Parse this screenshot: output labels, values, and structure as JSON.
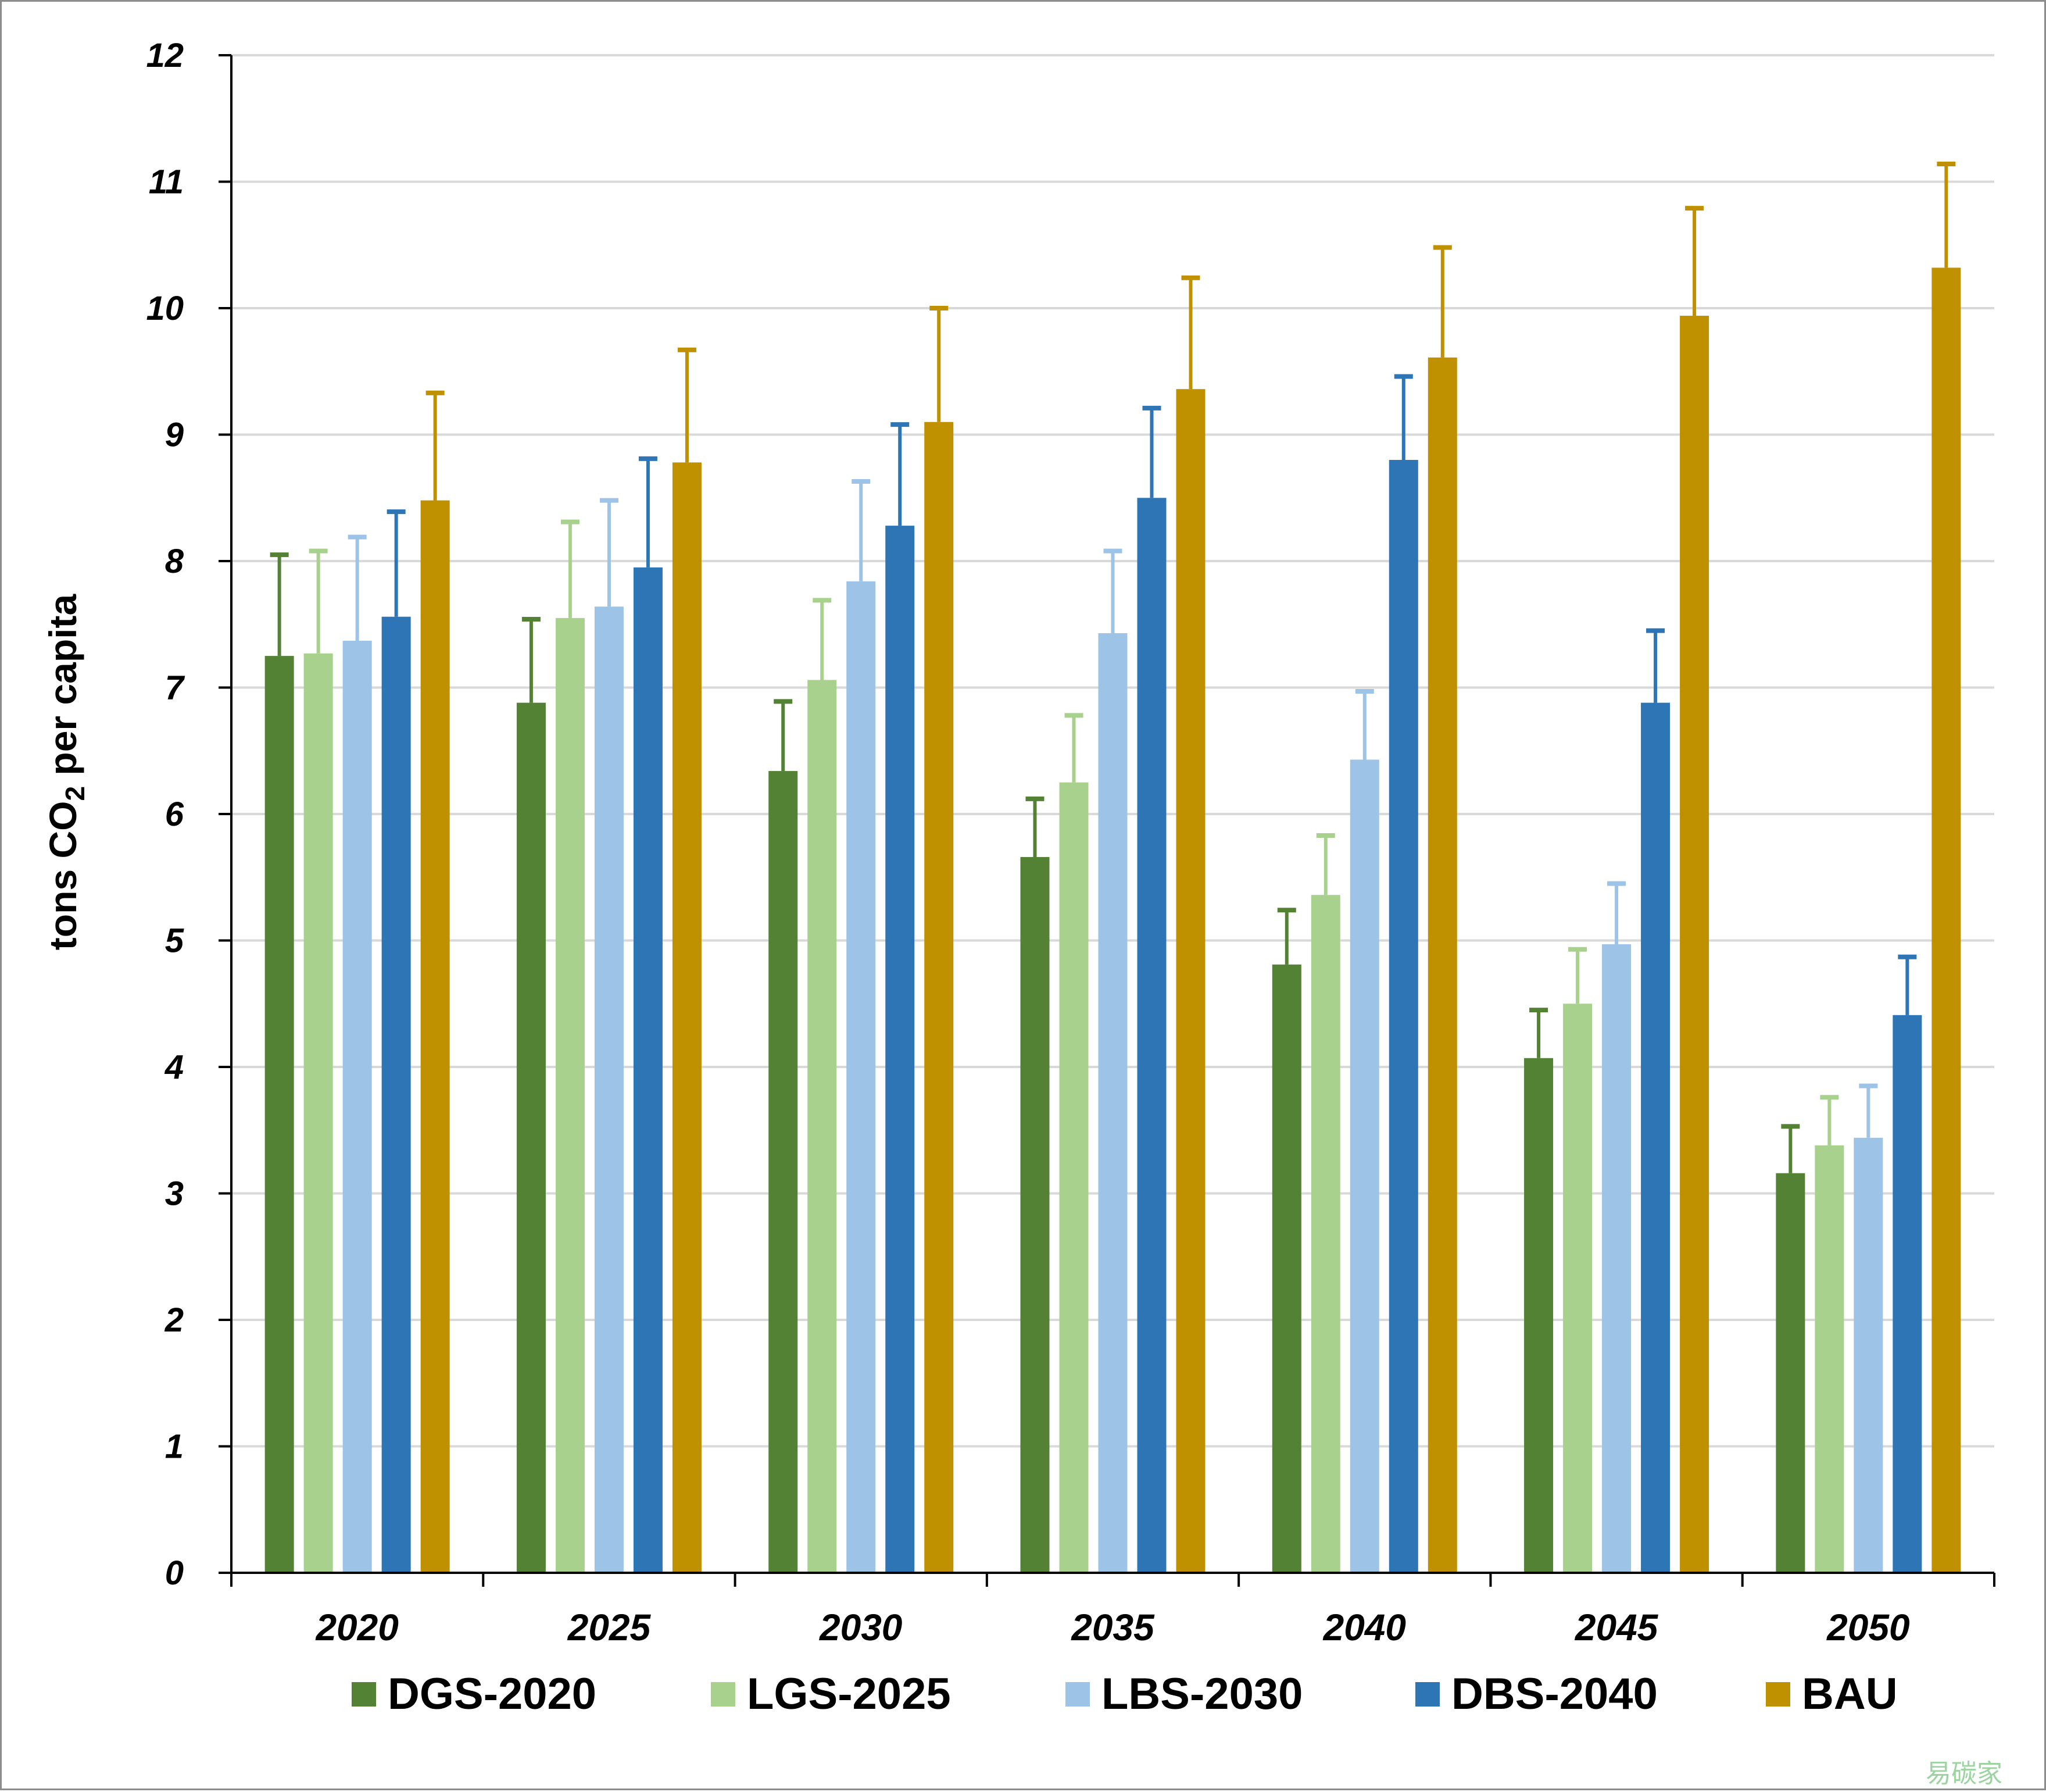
{
  "chart_data": {
    "type": "bar",
    "title": "",
    "xlabel": "",
    "ylabel": "tons CO2 per capita",
    "ylabel_parts": {
      "pre": "tons CO",
      "sub": "2",
      "post": " per capita"
    },
    "ylim": [
      0,
      12
    ],
    "yticks": [
      "0",
      "1",
      "2",
      "3",
      "4",
      "5",
      "6",
      "7",
      "8",
      "9",
      "10",
      "11",
      "12"
    ],
    "categories": [
      "2020",
      "2025",
      "2030",
      "2035",
      "2040",
      "2045",
      "2050"
    ],
    "grid": true,
    "legend_position": "bottom",
    "series": [
      {
        "name": "DGS-2020",
        "color": "#548235",
        "values": [
          7.25,
          6.88,
          6.34,
          5.66,
          4.81,
          4.07,
          3.16
        ],
        "error": [
          0.8,
          0.66,
          0.55,
          0.46,
          0.43,
          0.38,
          0.37
        ]
      },
      {
        "name": "LGS-2025",
        "color": "#a9d18e",
        "values": [
          7.27,
          7.55,
          7.06,
          6.25,
          5.36,
          4.5,
          3.38
        ],
        "error": [
          0.81,
          0.76,
          0.63,
          0.53,
          0.47,
          0.43,
          0.38
        ]
      },
      {
        "name": "LBS-2030",
        "color": "#9dc3e6",
        "values": [
          7.37,
          7.64,
          7.84,
          7.43,
          6.43,
          4.97,
          3.44
        ],
        "error": [
          0.82,
          0.84,
          0.79,
          0.65,
          0.54,
          0.48,
          0.41
        ]
      },
      {
        "name": "DBS-2040",
        "color": "#2e75b6",
        "values": [
          7.56,
          7.95,
          8.28,
          8.5,
          8.8,
          6.88,
          4.41
        ],
        "error": [
          0.83,
          0.86,
          0.8,
          0.71,
          0.66,
          0.57,
          0.46
        ]
      },
      {
        "name": "BAU",
        "color": "#bf9000",
        "values": [
          8.48,
          8.78,
          9.1,
          9.36,
          9.61,
          9.94,
          10.32
        ],
        "error": [
          0.85,
          0.89,
          0.9,
          0.88,
          0.87,
          0.85,
          0.82
        ]
      }
    ]
  },
  "watermark": "易碳家"
}
